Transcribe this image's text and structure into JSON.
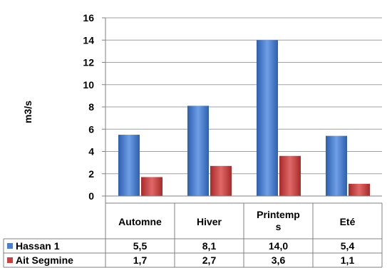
{
  "chart_data": {
    "type": "bar",
    "categories": [
      "Automne",
      "Hiver",
      "Printemps",
      "Eté"
    ],
    "category_labels": [
      [
        "Automne"
      ],
      [
        "Hiver"
      ],
      [
        "Printemp",
        "s"
      ],
      [
        "Eté"
      ]
    ],
    "series": [
      {
        "name": "Hassan 1",
        "values": [
          5.5,
          8.1,
          14.0,
          5.4
        ],
        "value_labels": [
          "5,5",
          "8,1",
          "14,0",
          "5,4"
        ],
        "color": "#4a7fcf"
      },
      {
        "name": "Ait Segmine",
        "values": [
          1.7,
          2.7,
          3.6,
          1.1
        ],
        "value_labels": [
          "1,7",
          "2,7",
          "3,6",
          "1,1"
        ],
        "color": "#c84040"
      }
    ],
    "ylabel": "m3/s",
    "ylim": [
      0,
      16
    ],
    "yticks": [
      "0",
      "2",
      "4",
      "6",
      "8",
      "10",
      "12",
      "14",
      "16"
    ],
    "grid": true,
    "legend": "data-table"
  }
}
